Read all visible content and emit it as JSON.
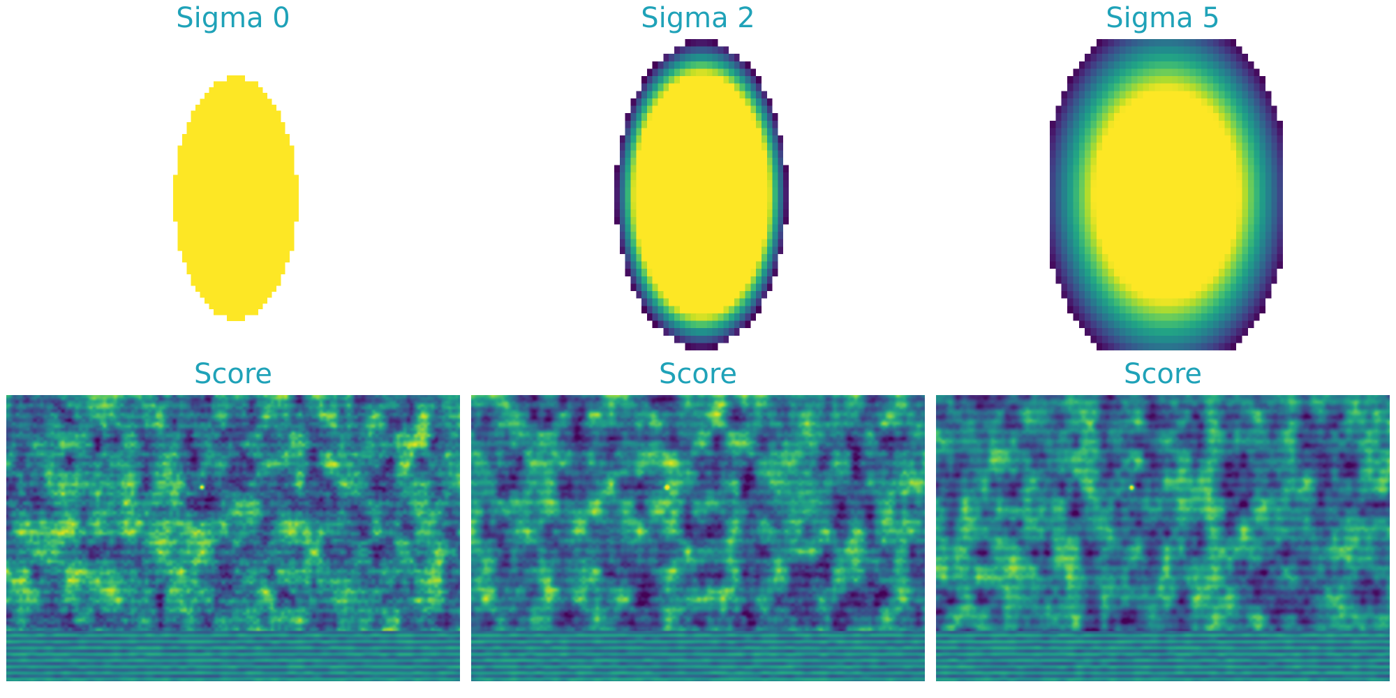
{
  "colors": {
    "title": "#1fa2b8",
    "background": "#ffffff",
    "colormap": "viridis"
  },
  "kernels": [
    {
      "title": "Sigma 0",
      "sigma": 0
    },
    {
      "title": "Sigma 2",
      "sigma": 2
    },
    {
      "title": "Sigma 5",
      "sigma": 5
    }
  ],
  "scores": [
    {
      "title": "Score",
      "sigma": 0
    },
    {
      "title": "Score",
      "sigma": 2
    },
    {
      "title": "Score",
      "sigma": 5
    }
  ]
}
